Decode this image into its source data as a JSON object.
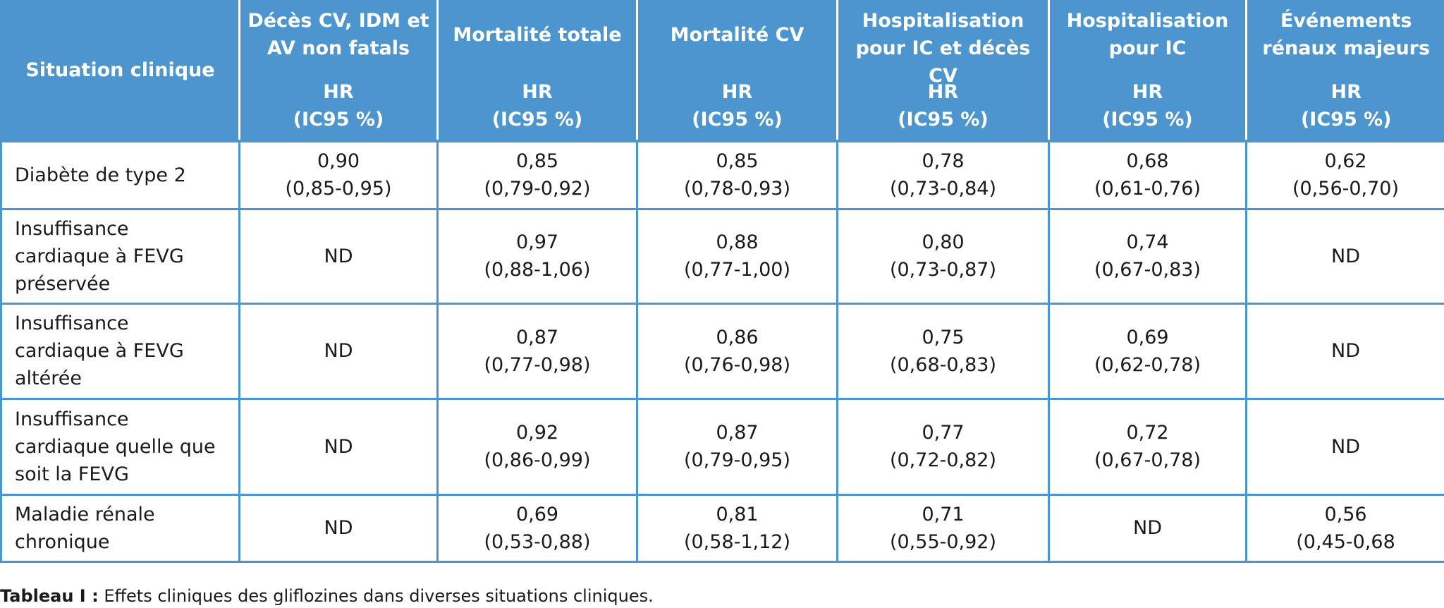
{
  "table": {
    "headers": [
      {
        "outcome": "Situation clinique",
        "metric": ""
      },
      {
        "outcome": "Décès CV, IDM et\nAV non fatals",
        "metric": "HR\n(IC95 %)"
      },
      {
        "outcome": "Mortalité totale",
        "metric": "HR\n(IC95 %)"
      },
      {
        "outcome": "Mortalité CV",
        "metric": "HR\n(IC95 %)"
      },
      {
        "outcome": "Hospitalisation\npour IC et décès CV",
        "metric": "HR\n(IC95 %)"
      },
      {
        "outcome": "Hospitalisation\npour IC",
        "metric": "HR\n(IC95 %)"
      },
      {
        "outcome": "Événements\nrénaux majeurs",
        "metric": "HR\n(IC95 %)"
      }
    ],
    "rows": [
      {
        "situation": "Diabète de type 2",
        "values": [
          "0,90\n(0,85-0,95)",
          "0,85\n(0,79-0,92)",
          "0,85\n(0,78-0,93)",
          "0,78\n(0,73-0,84)",
          "0,68\n(0,61-0,76)",
          "0,62\n(0,56-0,70)"
        ]
      },
      {
        "situation": "Insuffisance\ncardiaque à FEVG\npréservée",
        "values": [
          "ND",
          "0,97\n(0,88-1,06)",
          "0,88\n(0,77-1,00)",
          "0,80\n(0,73-0,87)",
          "0,74\n(0,67-0,83)",
          "ND"
        ]
      },
      {
        "situation": "Insuffisance\ncardiaque à FEVG\naltérée",
        "values": [
          "ND",
          "0,87\n(0,77-0,98)",
          "0,86\n(0,76-0,98)",
          "0,75\n(0,68-0,83)",
          "0,69\n(0,62-0,78)",
          "ND"
        ]
      },
      {
        "situation": "Insuffisance\ncardiaque quelle que\nsoit la FEVG",
        "values": [
          "ND",
          "0,92\n(0,86-0,99)",
          "0,87\n(0,79-0,95)",
          "0,77\n(0,72-0,82)",
          "0,72\n(0,67-0,78)",
          "ND"
        ]
      },
      {
        "situation": "Maladie rénale\nchronique",
        "values": [
          "ND",
          "0,69\n(0,53-0,88)",
          "0,81\n(0,58-1,12)",
          "0,71\n(0,55-0,92)",
          "ND",
          "0,56\n(0,45-0,68"
        ]
      }
    ]
  },
  "caption": {
    "label": "Tableau I :",
    "text": " Effets cliniques des gliflozines dans diverses situations cliniques."
  },
  "colors": {
    "header_background": "#4d95cf",
    "header_text": "#ffffff",
    "grid_lines": "#4d95cf",
    "body_text": "#1a1a1a"
  }
}
